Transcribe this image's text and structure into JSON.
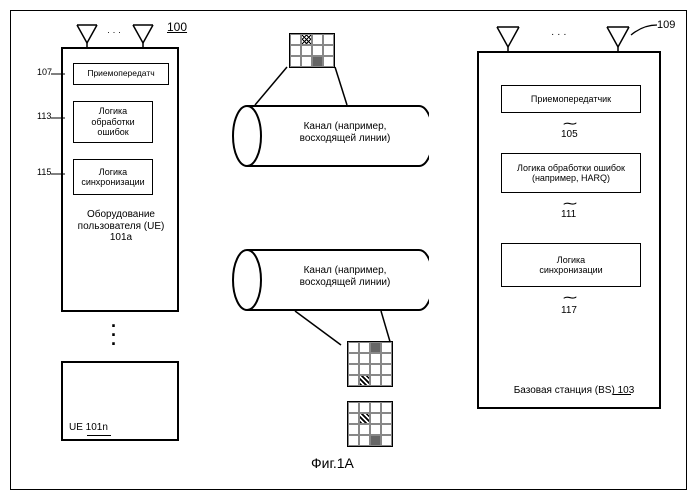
{
  "figure_label": "Фиг.1A",
  "ref_100": "100",
  "ref_109": "109",
  "ue": {
    "ref_107": "107",
    "ref_113": "113",
    "ref_115": "115",
    "transceiver": "Приемопередатч",
    "error_logic": "Логика\nобработки\nошибок",
    "sync_logic": "Логика\nсинхронизации",
    "equipment_label": "Оборудование\nпользователя (UE)\n101a",
    "ue_n": "UE 101n"
  },
  "bs": {
    "transceiver": "Приемопередатчик",
    "ref_105": "105",
    "error_logic": "Логика обработки ошибок\n(например, HARQ)",
    "ref_111": "111",
    "sync_logic": "Логика\nсинхронизации",
    "ref_117": "117",
    "station_label": "Базовая станция (BS) 103"
  },
  "channel_top": "Канал  (например,\nвосходящей линии)",
  "channel_bot": "Канал (например,\nвосходящей линии)",
  "colors": {
    "line": "#000000",
    "bg": "#ffffff"
  },
  "grid_top": {
    "rows": 3,
    "cols": 4,
    "cells": [
      [
        "",
        "crosshatch",
        "",
        ""
      ],
      [
        "",
        "",
        "",
        ""
      ],
      [
        "",
        "",
        "solid",
        ""
      ]
    ]
  },
  "grid_mid": {
    "rows": 4,
    "cols": 4,
    "cells": [
      [
        "",
        "",
        "solid",
        ""
      ],
      [
        "",
        "",
        "",
        ""
      ],
      [
        "",
        "",
        "",
        ""
      ],
      [
        "",
        "hatch",
        "",
        ""
      ]
    ]
  },
  "grid_bot": {
    "rows": 4,
    "cols": 4,
    "cells": [
      [
        "",
        "",
        "",
        ""
      ],
      [
        "",
        "hatch",
        "",
        ""
      ],
      [
        "",
        "",
        "",
        ""
      ],
      [
        "",
        "",
        "solid",
        ""
      ]
    ]
  }
}
